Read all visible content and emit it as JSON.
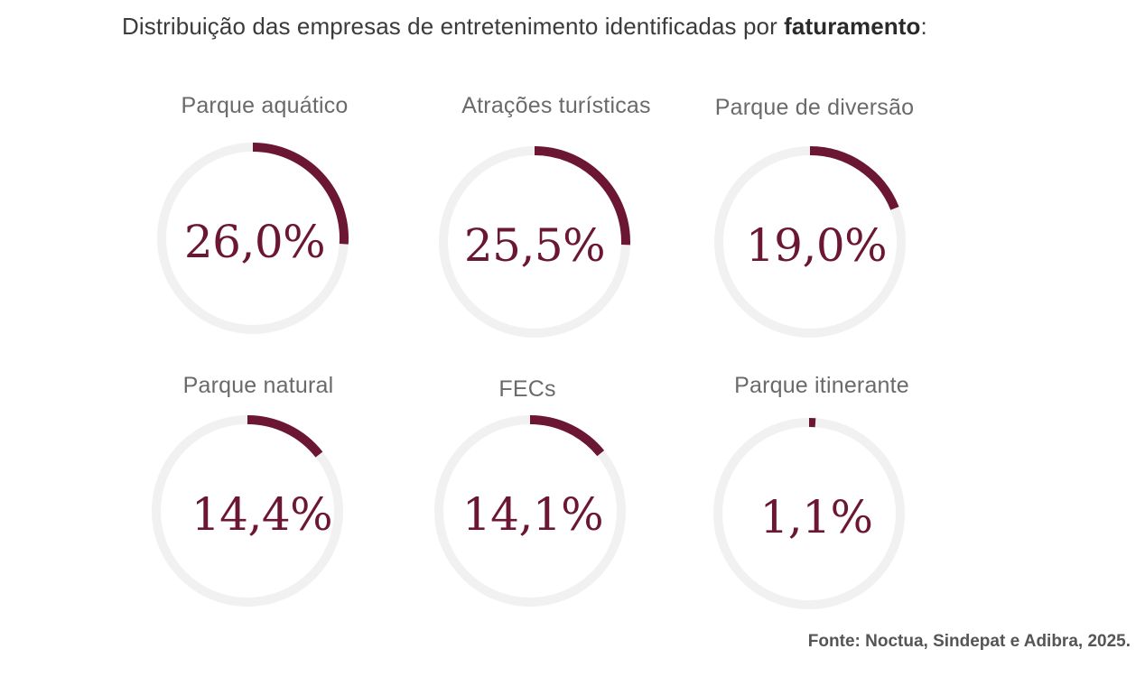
{
  "title": {
    "prefix": "Distribuição das empresas de entretenimento identificadas por ",
    "bold": "faturamento",
    "suffix": ":"
  },
  "colors": {
    "accent": "#6b1632",
    "track": "#f1f1f1"
  },
  "chart_data": {
    "type": "pie",
    "variant": "donut-gauge-grid",
    "title": "Distribuição das empresas de entretenimento identificadas por faturamento:",
    "categories": [
      "Parque aquático",
      "Atrações turísticas",
      "Parque de diversão",
      "Parque natural",
      "FECs",
      "Parque itinerante"
    ],
    "values": [
      26.0,
      25.5,
      19.0,
      14.4,
      14.1,
      1.1
    ],
    "value_labels": [
      "26,0%",
      "25,5%",
      "19,0%",
      "14,4%",
      "14,1%",
      "1,1%"
    ],
    "unit": "%"
  },
  "source": "Fonte: Noctua, Sindepat e Adibra, 2025."
}
